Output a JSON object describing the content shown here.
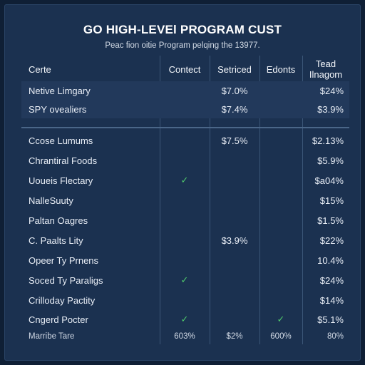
{
  "header": {
    "title": "GO HIGH-LEVEl PROGRAM CUST",
    "subtitle": "Peac fion oitie Program pelqing the 13977."
  },
  "table": {
    "columns": [
      "Certe",
      "Contect",
      "Setriced",
      "Edonts",
      "Tead",
      "Ilnagom"
    ],
    "group1": [
      {
        "name": "Netive Limgary",
        "contect": "",
        "setriced": "$7.0%",
        "edonts": "",
        "tead": "$24%"
      },
      {
        "name": "SPY ovealiers",
        "contect": "",
        "setriced": "$7.4%",
        "edonts": "",
        "tead": "$3.9%"
      }
    ],
    "group2": [
      {
        "name": "Ccose Lumums",
        "contect": "",
        "setriced": "$7.5%",
        "edonts": "",
        "tead": "$2.13%"
      },
      {
        "name": "Chrantiral Foods",
        "contect": "",
        "setriced": "",
        "edonts": "",
        "tead": "$5.9%"
      },
      {
        "name": "Uoueis Flectary",
        "contect": "✓",
        "setriced": "",
        "edonts": "",
        "tead": "$a04%"
      },
      {
        "name": "NalleSuuty",
        "contect": "",
        "setriced": "",
        "edonts": "",
        "tead": "$15%"
      },
      {
        "name": "Paltan Oagres",
        "contect": "",
        "setriced": "",
        "edonts": "",
        "tead": "$1.5%"
      },
      {
        "name": "C. Paalts Lity",
        "contect": "",
        "setriced": "$3.9%",
        "edonts": "",
        "tead": "$22%"
      },
      {
        "name": "Opeer Ty Prnens",
        "contect": "",
        "setriced": "",
        "edonts": "",
        "tead": "10.4%"
      },
      {
        "name": "Soced Ty Paraligs",
        "contect": "✓",
        "setriced": "",
        "edonts": "",
        "tead": "$24%"
      },
      {
        "name": "Crilloday Pactity",
        "contect": "",
        "setriced": "",
        "edonts": "",
        "tead": "$14%"
      },
      {
        "name": "Cngerd Pocter",
        "contect": "✓",
        "setriced": "",
        "edonts": "✓",
        "tead": "$5.1%"
      }
    ],
    "footer": {
      "name": "Marribe Tare",
      "contect": "603%",
      "setriced": "$2%",
      "edonts": "600%",
      "tead": "80%"
    }
  },
  "colors": {
    "background": "#1b3150",
    "check": "#4fc96b",
    "grid": "#3b5678"
  }
}
